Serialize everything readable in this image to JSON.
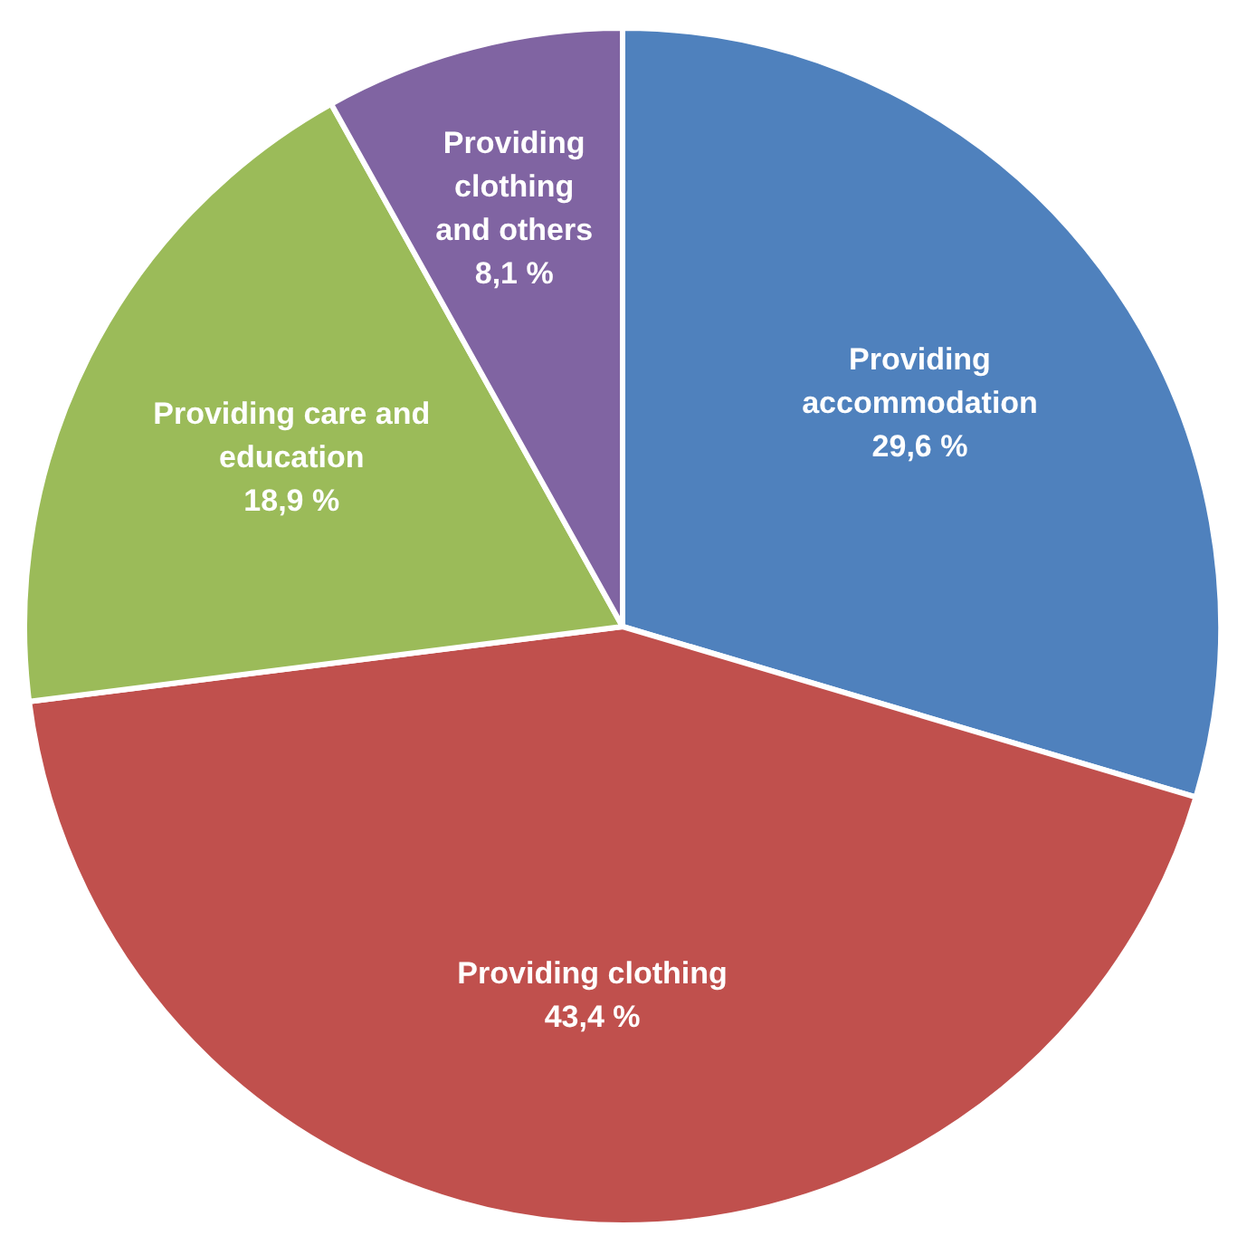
{
  "chart_data": {
    "type": "pie",
    "categories": [
      "Providing accommodation",
      "Providing clothing",
      "Providing care and education",
      "Providing clothing and others"
    ],
    "values": [
      29.6,
      43.4,
      18.9,
      8.1
    ],
    "value_labels": [
      "29,6 %",
      "43,4 %",
      "18,9 %",
      "8,1 %"
    ],
    "colors": [
      "#4f81bd",
      "#c0504d",
      "#9bbb59",
      "#8064a2"
    ],
    "legend": false
  }
}
